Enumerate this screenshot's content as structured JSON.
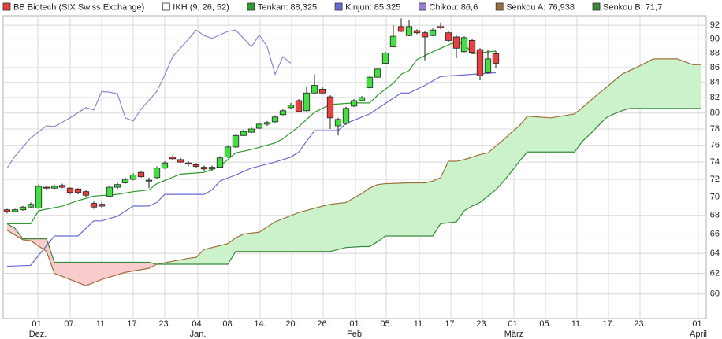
{
  "chart_data": {
    "type": "candlestick",
    "log_y": true,
    "grid": true,
    "xlim": [
      -0.5,
      88.7
    ],
    "ylim": [
      57.7,
      93.4
    ],
    "yticks": [
      60,
      62,
      64,
      66,
      68,
      70,
      72,
      74,
      76,
      78,
      80,
      82,
      84,
      86,
      88,
      90,
      92
    ],
    "xticks": [
      {
        "value": 3.9,
        "label": "01."
      },
      {
        "value": 8,
        "label": "07."
      },
      {
        "value": 12,
        "label": "11."
      },
      {
        "value": 16,
        "label": "17."
      },
      {
        "value": 20,
        "label": "23."
      },
      {
        "value": 24.2,
        "label": "04."
      },
      {
        "value": 28.1,
        "label": "08."
      },
      {
        "value": 32.1,
        "label": "14."
      },
      {
        "value": 36.1,
        "label": "20."
      },
      {
        "value": 40.1,
        "label": "26."
      },
      {
        "value": 44.2,
        "label": "01."
      },
      {
        "value": 48.1,
        "label": "05."
      },
      {
        "value": 52.3,
        "label": "11."
      },
      {
        "value": 56.3,
        "label": "17."
      },
      {
        "value": 60.3,
        "label": "23."
      },
      {
        "value": 64.3,
        "label": "01."
      },
      {
        "value": 68.3,
        "label": "05."
      },
      {
        "value": 72.3,
        "label": "11."
      },
      {
        "value": 76.3,
        "label": "17."
      },
      {
        "value": 80.3,
        "label": "23."
      },
      {
        "value": 87.7,
        "label": "01."
      }
    ],
    "x_period_labels": [
      {
        "value": 3.9,
        "label": "Dez."
      },
      {
        "value": 24.2,
        "label": "Jan."
      },
      {
        "value": 44.2,
        "label": "Feb."
      },
      {
        "value": 64.3,
        "label": "März"
      },
      {
        "value": 87.7,
        "label": "April"
      }
    ],
    "candles": {
      "name": "BB Biotech (SIX Swiss Exchange)",
      "color": "#e84040",
      "up_color": "#44dd44",
      "down_color": "#e84040",
      "open": [
        68.6,
        68.4,
        68.6,
        68.9,
        68.8,
        71.1,
        71.0,
        71.3,
        71.0,
        70.9,
        70.6,
        69.3,
        69.2,
        70.1,
        71.1,
        71.6,
        72.0,
        72.8,
        71.8,
        72.2,
        73.3,
        74.6,
        74.3,
        73.9,
        73.7,
        73.4,
        73.2,
        73.4,
        74.6,
        75.8,
        77.2,
        77.6,
        78.1,
        78.6,
        78.9,
        79.8,
        80.7,
        81.6,
        80.3,
        82.6,
        83.1,
        82.1,
        78.4,
        78.7,
        80.9,
        81.6,
        83.3,
        84.7,
        86.6,
        88.9,
        91.8,
        90.5,
        91.2,
        90.9,
        90.5,
        91.8,
        90.9,
        90.3,
        88.2,
        89.8,
        88.5,
        85.3,
        87.9
      ],
      "high": [
        68.7,
        68.7,
        69.0,
        69.4,
        71.4,
        71.3,
        71.4,
        71.5,
        71.1,
        71.0,
        70.8,
        69.5,
        69.4,
        71.2,
        71.6,
        72.2,
        72.7,
        73.0,
        72.2,
        73.5,
        74.1,
        74.8,
        74.5,
        74.1,
        73.9,
        73.6,
        73.6,
        74.7,
        76.0,
        77.4,
        77.9,
        78.2,
        78.8,
        79.0,
        79.7,
        80.5,
        81.3,
        81.8,
        83.5,
        85.1,
        83.4,
        82.3,
        79.4,
        80.8,
        81.8,
        82.2,
        84.9,
        86.0,
        88.2,
        92.0,
        93.0,
        92.8,
        91.4,
        91.1,
        91.5,
        92.4,
        91.1,
        90.5,
        90.4,
        90.0,
        88.7,
        88.4,
        88.3
      ],
      "low": [
        68.2,
        68.3,
        68.5,
        68.8,
        68.7,
        70.8,
        70.9,
        71.0,
        70.3,
        70.3,
        70.0,
        68.7,
        68.8,
        70.0,
        70.9,
        71.5,
        71.9,
        72.2,
        71.0,
        72.1,
        73.2,
        74.2,
        73.9,
        73.5,
        73.3,
        72.9,
        73.0,
        73.3,
        74.5,
        75.7,
        77.1,
        77.5,
        78.0,
        78.4,
        78.8,
        79.7,
        80.6,
        80.1,
        80.2,
        82.5,
        82.4,
        78.0,
        77.2,
        78.5,
        80.8,
        81.5,
        83.2,
        84.6,
        86.5,
        88.8,
        91.0,
        90.4,
        90.7,
        87.0,
        90.4,
        91.4,
        89.6,
        87.3,
        88.1,
        87.9,
        84.3,
        85.2,
        86.0
      ],
      "close": [
        68.4,
        68.6,
        68.9,
        69.2,
        71.2,
        71.0,
        71.2,
        71.1,
        70.5,
        70.5,
        70.2,
        68.9,
        69.0,
        71.1,
        71.4,
        72.0,
        72.5,
        72.3,
        71.9,
        73.3,
        73.9,
        74.4,
        74.0,
        73.8,
        73.5,
        73.2,
        73.4,
        74.5,
        75.8,
        77.2,
        77.7,
        78.0,
        78.6,
        78.8,
        79.5,
        80.3,
        81.0,
        80.2,
        82.6,
        83.6,
        82.6,
        79.4,
        79.2,
        80.6,
        81.6,
        82.0,
        84.7,
        85.8,
        88.0,
        90.4,
        91.1,
        91.8,
        90.9,
        90.3,
        91.3,
        91.6,
        89.8,
        88.7,
        90.2,
        88.1,
        84.9,
        87.2,
        86.6
      ]
    },
    "indicator": {
      "name": "IKH (9, 26, 52)",
      "color": "#ffffff"
    },
    "cloud_colors": {
      "above": "#ccf2cc",
      "below": "#f8cccc"
    },
    "series": [
      {
        "name": "Tenkan: 88,325",
        "color": "#2f9a2f",
        "x": [
          0,
          3,
          4,
          7,
          9,
          11,
          14,
          16,
          18,
          19,
          22,
          25,
          27,
          29,
          31,
          34,
          35,
          37,
          39,
          41,
          44,
          46,
          47,
          49,
          50,
          51,
          52,
          54,
          56.5,
          58,
          59,
          62
        ],
        "values": [
          67.1,
          67.1,
          68.5,
          69.0,
          69.6,
          70.1,
          70.3,
          70.6,
          70.8,
          71.5,
          72.6,
          72.8,
          73.5,
          75.1,
          75.5,
          76.3,
          76.8,
          78.3,
          80.1,
          81.1,
          81.3,
          81.3,
          82.3,
          83.9,
          85.1,
          85.6,
          87.1,
          88.2,
          89.4,
          89.4,
          87.9,
          88.3
        ]
      },
      {
        "name": "Kinjun: 85,325",
        "color": "#6a6ad8",
        "x": [
          0,
          3,
          4,
          6,
          9,
          11,
          12,
          14,
          16,
          18,
          19,
          20,
          25,
          26,
          27,
          29,
          31,
          34,
          36,
          37,
          39,
          42,
          43,
          46,
          50,
          51,
          53,
          55,
          62
        ],
        "values": [
          62.7,
          62.8,
          63.8,
          65.8,
          65.8,
          67.4,
          67.4,
          67.9,
          69.0,
          69.0,
          69.4,
          70.3,
          70.3,
          70.8,
          71.8,
          72.5,
          73.3,
          74.0,
          74.6,
          75.2,
          77.8,
          77.8,
          78.7,
          79.9,
          82.6,
          82.6,
          83.6,
          84.8,
          85.3
        ]
      },
      {
        "name": "Chikou: 86,6",
        "color": "#9a80d0",
        "x": [
          0,
          1,
          3,
          5,
          6,
          8,
          10,
          11,
          12,
          13,
          14,
          15,
          16,
          17,
          19,
          20,
          21,
          22,
          24,
          25,
          26,
          28,
          29,
          31,
          32,
          33,
          34,
          35,
          36
        ],
        "values": [
          73.3,
          74.7,
          76.9,
          78.4,
          78.3,
          79.4,
          80.7,
          80.4,
          82.8,
          82.7,
          82.5,
          79.4,
          79.0,
          80.5,
          82.8,
          85.0,
          87.5,
          88.7,
          91.3,
          90.5,
          90.1,
          91.1,
          91.3,
          88.9,
          90.6,
          88.9,
          85.1,
          87.5,
          86.6
        ]
      },
      {
        "name": "Senkou A: 76,938",
        "color": "#a0703c",
        "x": [
          0,
          1,
          2,
          3,
          5,
          6,
          7,
          10,
          12,
          15,
          18,
          19,
          23,
          24,
          25,
          28,
          29,
          30,
          32,
          34,
          37,
          40,
          41,
          43,
          45,
          46,
          47,
          48,
          51,
          53,
          54,
          55,
          56,
          57,
          58,
          59,
          60,
          61,
          62,
          63,
          64,
          65,
          66,
          69,
          72,
          73,
          74,
          75,
          76,
          77,
          78,
          79,
          80,
          82,
          85,
          87,
          88
        ],
        "values": [
          66.4,
          65.9,
          65.4,
          65.3,
          64.2,
          62.0,
          61.7,
          60.8,
          61.4,
          62.1,
          62.5,
          62.9,
          63.5,
          63.6,
          64.4,
          65.0,
          65.6,
          66.0,
          66.2,
          67.3,
          68.3,
          69.0,
          69.2,
          69.4,
          70.4,
          71.0,
          71.4,
          71.5,
          71.6,
          71.6,
          71.8,
          72.2,
          74.1,
          74.1,
          74.3,
          74.6,
          74.9,
          75.1,
          75.9,
          76.7,
          77.6,
          78.4,
          79.6,
          79.4,
          79.9,
          80.7,
          81.6,
          82.5,
          83.3,
          84.2,
          85.1,
          85.6,
          86.1,
          87.2,
          87.2,
          86.4,
          86.4
        ]
      },
      {
        "name": "Senkou B: 71,7",
        "color": "#3a8a3a",
        "x": [
          0,
          1,
          2,
          3,
          5,
          6,
          7,
          10,
          12,
          15,
          18,
          19,
          23,
          24,
          25,
          28,
          29,
          30,
          32,
          34,
          37,
          40,
          41,
          43,
          45,
          46,
          47,
          48,
          51,
          53,
          54,
          55,
          56,
          57,
          58,
          59,
          60,
          61,
          62,
          63,
          64,
          65,
          66,
          69,
          72,
          73,
          74,
          75,
          76,
          77,
          78,
          79,
          80,
          82,
          85,
          87,
          88
        ],
        "values": [
          67.1,
          66.6,
          65.5,
          65.5,
          65.5,
          63.1,
          63.1,
          63.1,
          63.1,
          63.1,
          63.1,
          62.9,
          62.9,
          62.9,
          62.9,
          62.9,
          64.2,
          64.2,
          64.2,
          64.2,
          64.2,
          64.2,
          64.2,
          64.6,
          64.7,
          64.7,
          65.2,
          65.8,
          65.8,
          65.8,
          65.8,
          67.1,
          67.2,
          67.3,
          68.5,
          69.0,
          69.4,
          70.1,
          70.8,
          71.8,
          72.9,
          74.1,
          75.2,
          75.2,
          75.2,
          76.5,
          77.4,
          78.4,
          79.4,
          79.9,
          80.3,
          80.6,
          80.6,
          80.6,
          80.6,
          80.6,
          80.6
        ]
      }
    ]
  }
}
